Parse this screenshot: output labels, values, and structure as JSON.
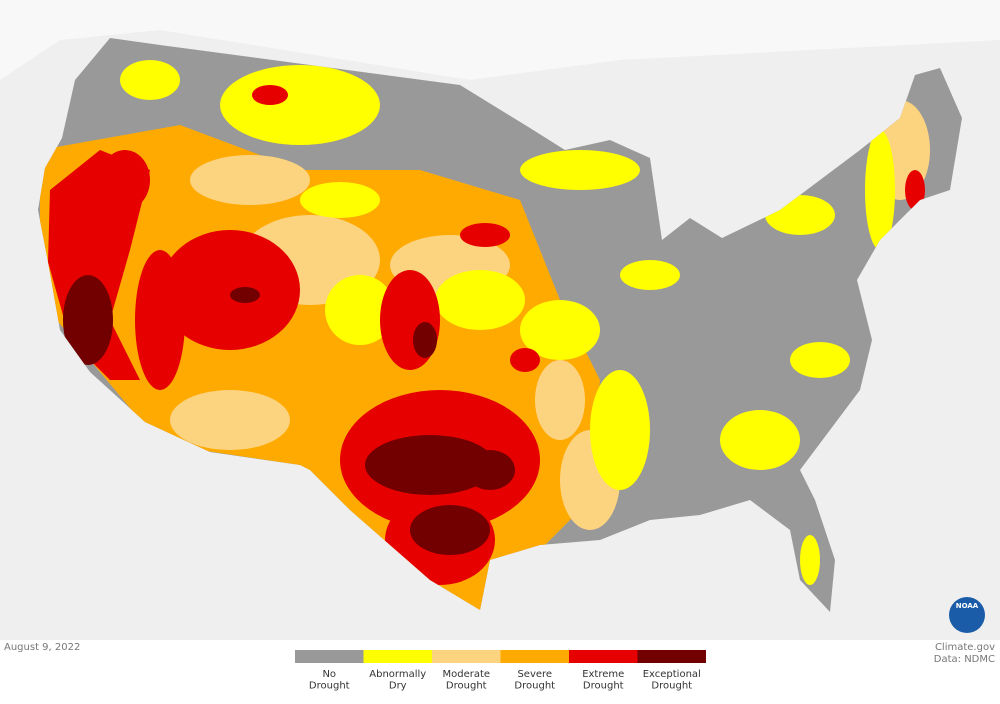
{
  "date": "August 9, 2022",
  "legend": [
    {
      "label": "No Drought",
      "color": "#999999"
    },
    {
      "label": "Abnormally Dry",
      "color": "#ffff00"
    },
    {
      "label": "Moderate Drought",
      "color": "#fcd37f"
    },
    {
      "label": "Severe Drought",
      "color": "#ffaa00"
    },
    {
      "label": "Extreme Drought",
      "color": "#e60000"
    },
    {
      "label": "Exceptional Drought",
      "color": "#730000"
    }
  ],
  "credit": {
    "site": "Climate.gov",
    "data": "Data: NDMC"
  },
  "logo": "NOAA"
}
